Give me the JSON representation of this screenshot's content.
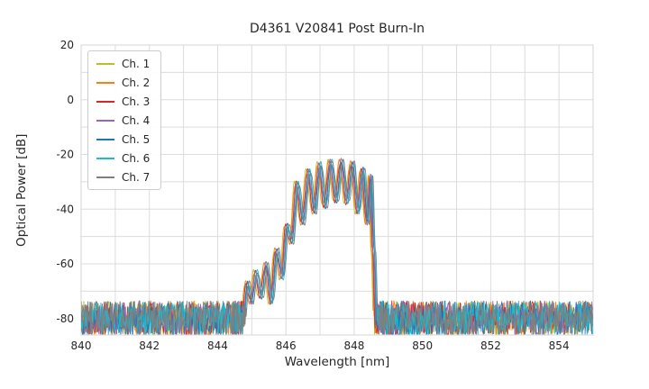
{
  "chart_data": {
    "type": "line",
    "title": "D4361 V20841 Post Burn-In",
    "xlabel": "Wavelength [nm]",
    "ylabel": "Optical Power [dB]",
    "xlim": [
      840,
      855
    ],
    "ylim": [
      -86,
      20
    ],
    "xticks": [
      840,
      842,
      844,
      846,
      848,
      850,
      852,
      854
    ],
    "yticks": [
      20,
      0,
      -20,
      -40,
      -60,
      -80
    ],
    "grid": true,
    "grid_minor_x_step_nm": 1,
    "grid_minor_y_step_db": 10,
    "legend_position": "upper left",
    "series": [
      {
        "name": "Ch. 1",
        "color": "#bcbd22"
      },
      {
        "name": "Ch. 2",
        "color": "#ff7f0e"
      },
      {
        "name": "Ch. 3",
        "color": "#d62728"
      },
      {
        "name": "Ch. 4",
        "color": "#9467bd"
      },
      {
        "name": "Ch. 5",
        "color": "#1f77b4"
      },
      {
        "name": "Ch. 6",
        "color": "#17becf"
      },
      {
        "name": "Ch. 7",
        "color": "#7f7f7f"
      }
    ],
    "noise_floor_db": {
      "top": -73.5,
      "peak_to_peak": 13
    },
    "channel_offset_nm": 0.022,
    "signal_envelope": [
      [
        844.72,
        -83
      ],
      [
        844.86,
        -67
      ],
      [
        844.98,
        -74
      ],
      [
        845.12,
        -63
      ],
      [
        845.26,
        -72
      ],
      [
        845.42,
        -60
      ],
      [
        845.56,
        -74
      ],
      [
        845.72,
        -55
      ],
      [
        845.88,
        -65
      ],
      [
        846.02,
        -46
      ],
      [
        846.16,
        -52
      ],
      [
        846.32,
        -30.5
      ],
      [
        846.48,
        -45
      ],
      [
        846.66,
        -26
      ],
      [
        846.82,
        -41
      ],
      [
        846.98,
        -23.5
      ],
      [
        847.14,
        -39
      ],
      [
        847.3,
        -22.5
      ],
      [
        847.46,
        -37
      ],
      [
        847.62,
        -22.3
      ],
      [
        847.78,
        -37.5
      ],
      [
        847.94,
        -23.2
      ],
      [
        848.1,
        -41
      ],
      [
        848.24,
        -25.5
      ],
      [
        848.38,
        -45
      ],
      [
        848.48,
        -28
      ],
      [
        848.56,
        -55
      ],
      [
        848.64,
        -83
      ]
    ]
  }
}
